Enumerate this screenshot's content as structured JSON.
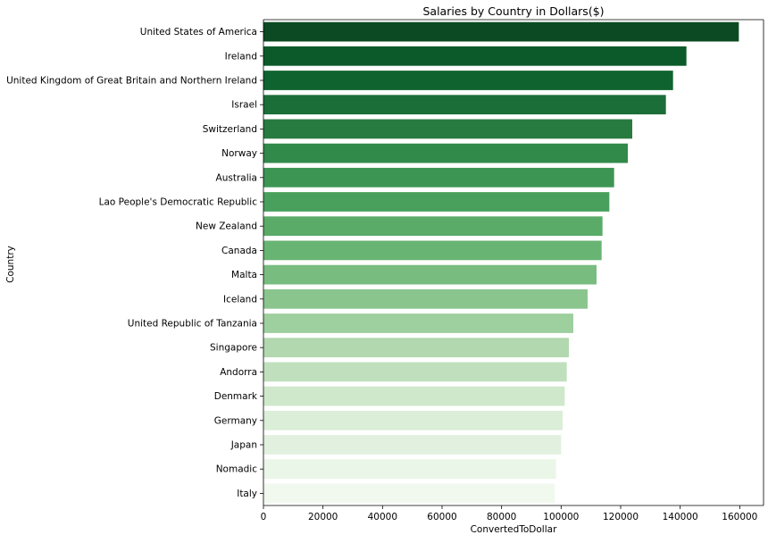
{
  "chart_data": {
    "type": "bar",
    "orientation": "horizontal",
    "title": "Salaries by Country in Dollars($)",
    "xlabel": "ConvertedToDollar",
    "ylabel": "Country",
    "xlim": [
      0,
      168000
    ],
    "xticks": [
      0,
      20000,
      40000,
      60000,
      80000,
      100000,
      120000,
      140000,
      160000
    ],
    "grid": false,
    "categories": [
      "United States of America",
      "Ireland",
      "United Kingdom of Great Britain and Northern Ireland",
      "Israel",
      "Switzerland",
      "Norway",
      "Australia",
      "Lao People's Democratic Republic",
      "New Zealand",
      "Canada",
      "Malta",
      "Iceland",
      "United Republic of Tanzania",
      "Singapore",
      "Andorra",
      "Denmark",
      "Germany",
      "Japan",
      "Nomadic",
      "Italy"
    ],
    "values": [
      159700,
      142100,
      137600,
      135200,
      123900,
      122400,
      117800,
      116200,
      113900,
      113600,
      111900,
      108900,
      104100,
      102600,
      101900,
      101200,
      100500,
      100000,
      98300,
      97900
    ],
    "colors": [
      "#0b4a22",
      "#0c5a2a",
      "#0f632f",
      "#1b6e38",
      "#277b41",
      "#31894a",
      "#3d9554",
      "#48a05c",
      "#5aab68",
      "#68b473",
      "#78bc7f",
      "#8ac58e",
      "#9ecf9e",
      "#b1d8ae",
      "#c0e0bd",
      "#cfe8cb",
      "#dbeed8",
      "#e2f1df",
      "#eaf6e7",
      "#f1f9ef"
    ]
  }
}
